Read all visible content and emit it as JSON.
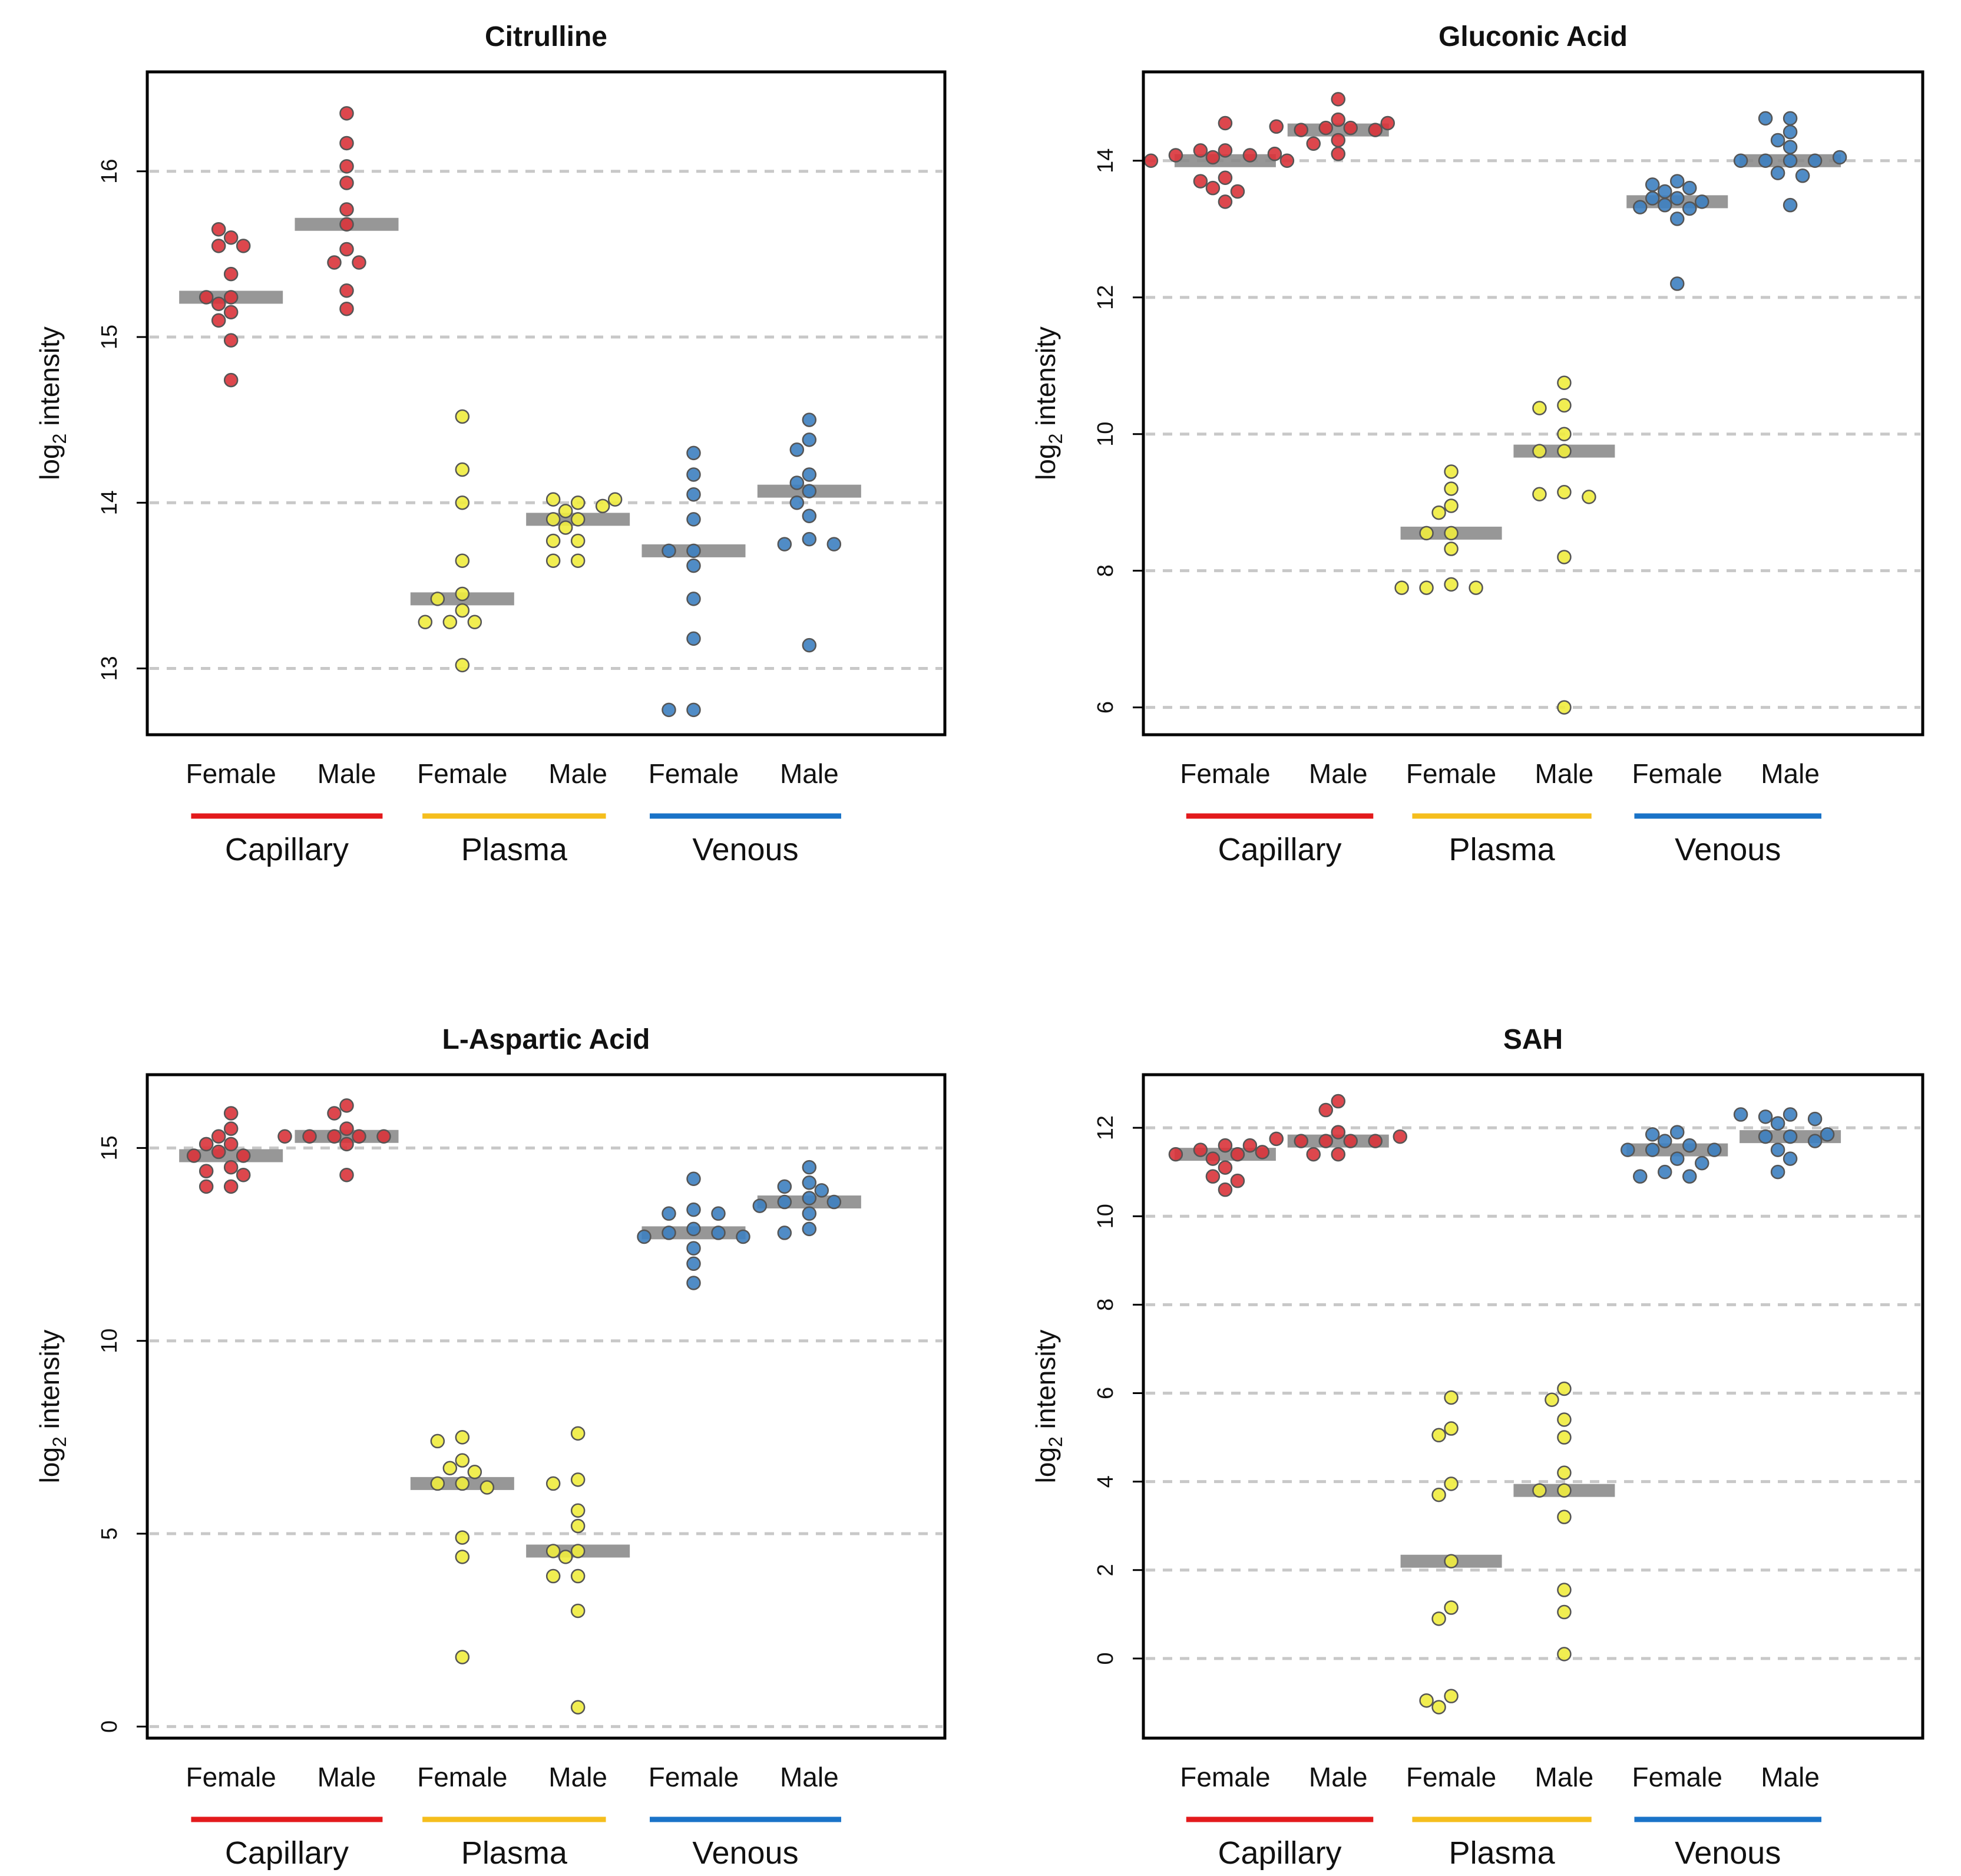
{
  "figure": {
    "ylabel_prefix": "log",
    "ylabel_sub": "2",
    "ylabel_suffix": " intensity",
    "sex_labels": [
      "Female",
      "Male"
    ],
    "groups": [
      {
        "name": "Capillary",
        "color": "#e31a1c"
      },
      {
        "name": "Plasma",
        "color": "#f5be1d"
      },
      {
        "name": "Venous",
        "color": "#1a73c8"
      }
    ],
    "point_colors": {
      "Capillary": "#d9333a",
      "Plasma": "#f0ec3e",
      "Venous": "#3d7fc0"
    },
    "median_bar_color": "#8c8c8c"
  },
  "chart_data": [
    {
      "type": "scatter",
      "title": "Citrulline",
      "ylabel": "log2 intensity",
      "ylim": [
        12.6,
        16.6
      ],
      "yticks": [
        13,
        14,
        15,
        16
      ],
      "grid": "horizontal-dashed",
      "series": [
        {
          "name": "Capillary Female",
          "median": 15.24,
          "values": [
            15.6,
            15.55,
            15.55,
            15.65,
            15.38,
            15.24,
            15.24,
            15.15,
            15.1,
            15.2,
            14.98,
            14.74
          ]
        },
        {
          "name": "Capillary Male",
          "median": 15.68,
          "values": [
            16.35,
            16.17,
            16.03,
            15.93,
            15.77,
            15.68,
            15.53,
            15.45,
            15.45,
            15.28,
            15.17
          ]
        },
        {
          "name": "Plasma Female",
          "median": 13.42,
          "values": [
            14.52,
            14.2,
            14.0,
            13.65,
            13.45,
            13.42,
            13.35,
            13.28,
            13.28,
            13.28,
            13.02
          ]
        },
        {
          "name": "Plasma Male",
          "median": 13.9,
          "values": [
            14.0,
            14.02,
            13.98,
            14.02,
            13.95,
            13.9,
            13.9,
            13.85,
            13.77,
            13.77,
            13.65,
            13.65
          ]
        },
        {
          "name": "Venous Female",
          "median": 13.71,
          "values": [
            14.3,
            14.17,
            14.05,
            13.9,
            13.71,
            13.71,
            13.62,
            13.42,
            13.18,
            12.75,
            12.75
          ]
        },
        {
          "name": "Venous Male",
          "median": 14.07,
          "values": [
            14.5,
            14.38,
            14.32,
            14.17,
            14.12,
            14.07,
            14.0,
            13.92,
            13.78,
            13.75,
            13.75,
            13.14
          ]
        }
      ]
    },
    {
      "type": "scatter",
      "title": "Gluconic Acid",
      "ylabel": "log2 intensity",
      "ylim": [
        5.6,
        15.3
      ],
      "yticks": [
        6,
        8,
        10,
        12,
        14
      ],
      "grid": "horizontal-dashed",
      "series": [
        {
          "name": "Capillary Female",
          "median": 14.0,
          "values": [
            14.15,
            14.15,
            14.08,
            14.08,
            14.05,
            14.1,
            14.55,
            14.0,
            14.0,
            13.75,
            13.7,
            13.6,
            13.55,
            13.4
          ]
        },
        {
          "name": "Capillary Male",
          "median": 14.45,
          "values": [
            14.9,
            14.6,
            14.48,
            14.48,
            14.45,
            14.45,
            14.5,
            14.55,
            14.3,
            14.25,
            14.1
          ]
        },
        {
          "name": "Plasma Female",
          "median": 8.55,
          "values": [
            9.45,
            9.2,
            8.95,
            8.85,
            8.55,
            8.55,
            8.32,
            7.8,
            7.75,
            7.75,
            7.75
          ]
        },
        {
          "name": "Plasma Male",
          "median": 9.75,
          "values": [
            10.75,
            10.42,
            10.38,
            10.0,
            9.75,
            9.75,
            9.15,
            9.12,
            9.08,
            8.2,
            6.0
          ]
        },
        {
          "name": "Venous Female",
          "median": 13.4,
          "values": [
            13.7,
            13.65,
            13.55,
            13.6,
            13.45,
            13.45,
            13.4,
            13.35,
            13.32,
            13.3,
            13.15,
            12.2
          ]
        },
        {
          "name": "Venous Male",
          "median": 14.0,
          "values": [
            14.62,
            14.62,
            14.42,
            14.3,
            14.2,
            14.0,
            14.0,
            14.0,
            14.0,
            14.05,
            13.82,
            13.78,
            13.35
          ]
        }
      ]
    },
    {
      "type": "scatter",
      "title": "L-Aspartic Acid",
      "ylabel": "log2 intensity",
      "ylim": [
        -0.3,
        16.9
      ],
      "yticks": [
        0,
        5,
        10,
        15
      ],
      "grid": "horizontal-dashed",
      "series": [
        {
          "name": "Capillary Female",
          "median": 14.8,
          "values": [
            15.9,
            15.5,
            15.1,
            15.3,
            15.1,
            14.9,
            14.8,
            14.8,
            14.5,
            14.4,
            14.3,
            14.0,
            14.0
          ]
        },
        {
          "name": "Capillary Male",
          "median": 15.3,
          "values": [
            16.1,
            15.9,
            15.5,
            15.3,
            15.3,
            15.3,
            15.3,
            15.3,
            15.1,
            14.3
          ]
        },
        {
          "name": "Plasma Female",
          "median": 6.3,
          "values": [
            7.5,
            7.4,
            6.9,
            6.7,
            6.6,
            6.3,
            6.3,
            6.2,
            4.9,
            4.4,
            1.8
          ]
        },
        {
          "name": "Plasma Male",
          "median": 4.55,
          "values": [
            7.6,
            6.4,
            6.3,
            5.6,
            5.2,
            4.55,
            4.55,
            4.4,
            3.9,
            3.9,
            3.0,
            0.5
          ]
        },
        {
          "name": "Venous Female",
          "median": 12.8,
          "values": [
            14.2,
            13.4,
            13.3,
            13.3,
            12.9,
            12.8,
            12.8,
            12.7,
            12.7,
            12.4,
            12.0,
            11.5
          ]
        },
        {
          "name": "Venous Male",
          "median": 13.6,
          "values": [
            14.5,
            14.1,
            14.0,
            13.9,
            13.7,
            13.6,
            13.6,
            13.5,
            13.3,
            12.9,
            12.8
          ]
        }
      ]
    },
    {
      "type": "scatter",
      "title": "SAH",
      "ylabel": "log2 intensity",
      "ylim": [
        -1.8,
        13.2
      ],
      "yticks": [
        0,
        2,
        4,
        6,
        8,
        10,
        12
      ],
      "grid": "horizontal-dashed",
      "series": [
        {
          "name": "Capillary Female",
          "median": 11.4,
          "values": [
            11.6,
            11.5,
            11.4,
            11.45,
            11.3,
            11.1,
            11.6,
            11.4,
            10.9,
            10.8,
            10.6
          ]
        },
        {
          "name": "Capillary Male",
          "median": 11.7,
          "values": [
            12.6,
            12.4,
            11.9,
            11.7,
            11.7,
            11.7,
            11.7,
            11.75,
            11.8,
            11.4,
            11.4
          ]
        },
        {
          "name": "Plasma Female",
          "median": 2.2,
          "values": [
            5.9,
            5.2,
            5.05,
            3.95,
            3.7,
            2.2,
            1.15,
            0.9,
            -0.85,
            -0.95,
            -1.1
          ]
        },
        {
          "name": "Plasma Male",
          "median": 3.8,
          "values": [
            6.1,
            5.85,
            5.4,
            5.0,
            4.2,
            3.8,
            3.8,
            3.2,
            1.55,
            1.05,
            0.1
          ]
        },
        {
          "name": "Venous Female",
          "median": 11.5,
          "values": [
            11.9,
            11.85,
            11.7,
            11.6,
            11.5,
            11.5,
            11.5,
            11.3,
            11.2,
            11.0,
            10.9,
            10.9
          ]
        },
        {
          "name": "Venous Male",
          "median": 11.8,
          "values": [
            12.3,
            12.25,
            12.2,
            12.1,
            12.3,
            11.8,
            11.8,
            11.7,
            11.85,
            11.5,
            11.3,
            11.0
          ]
        }
      ]
    }
  ]
}
